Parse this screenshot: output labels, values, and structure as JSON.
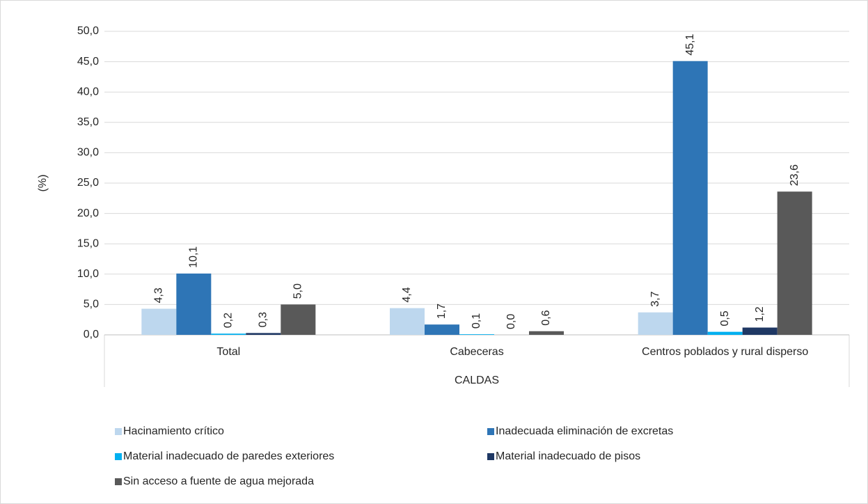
{
  "chart_data": {
    "type": "bar",
    "y_label": "(%)",
    "x_label": "CALDAS",
    "categories": [
      "Total",
      "Cabeceras",
      "Centros poblados y rural disperso"
    ],
    "series": [
      {
        "name": "Hacinamiento crítico",
        "color": "#bdd7ee",
        "values": [
          4.3,
          4.4,
          3.7
        ],
        "value_labels": [
          "4,3",
          "4,4",
          "3,7"
        ]
      },
      {
        "name": "Inadecuada eliminación de excretas",
        "color": "#2e75b6",
        "values": [
          10.1,
          1.7,
          45.1
        ],
        "value_labels": [
          "10,1",
          "1,7",
          "45,1"
        ]
      },
      {
        "name": "Material inadecuado de paredes exteriores",
        "color": "#00b0f0",
        "values": [
          0.2,
          0.1,
          0.5
        ],
        "value_labels": [
          "0,2",
          "0,1",
          "0,5"
        ]
      },
      {
        "name": "Material inadecuado de pisos",
        "color": "#1f3864",
        "values": [
          0.3,
          0.0,
          1.2
        ],
        "value_labels": [
          "0,3",
          "0,0",
          "1,2"
        ]
      },
      {
        "name": "Sin acceso a fuente de agua mejorada",
        "color": "#595959",
        "values": [
          5.0,
          0.6,
          23.6
        ],
        "value_labels": [
          "5,0",
          "0,6",
          "23,6"
        ]
      }
    ],
    "ylim": [
      0,
      50
    ],
    "yticks": [
      {
        "value": 0,
        "label": "0,0"
      },
      {
        "value": 5,
        "label": "5,0"
      },
      {
        "value": 10,
        "label": "10,0"
      },
      {
        "value": 15,
        "label": "15,0"
      },
      {
        "value": 20,
        "label": "20,0"
      },
      {
        "value": 25,
        "label": "25,0"
      },
      {
        "value": 30,
        "label": "30,0"
      },
      {
        "value": 35,
        "label": "35,0"
      },
      {
        "value": 40,
        "label": "40,0"
      },
      {
        "value": 45,
        "label": "45,0"
      },
      {
        "value": 50,
        "label": "50,0"
      }
    ],
    "grid": true,
    "legend": "bottom"
  }
}
